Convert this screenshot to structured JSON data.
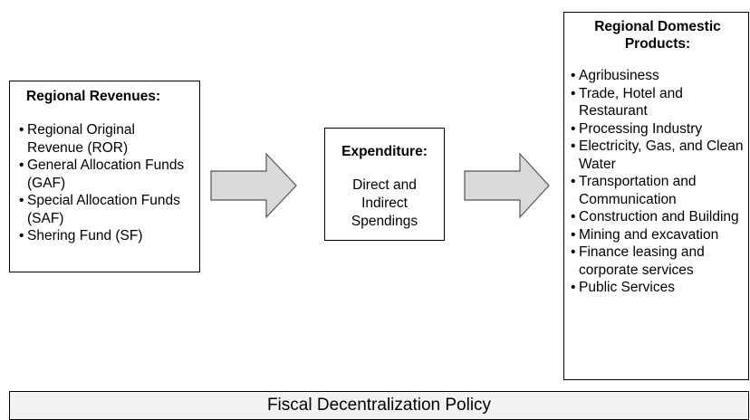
{
  "revenues": {
    "title": "Regional Revenues:",
    "items": [
      "Regional Original Revenue (ROR)",
      "General Allocation Funds (GAF)",
      "Special Allocation Funds (SAF)",
      "Shering Fund (SF)"
    ]
  },
  "expenditure": {
    "title": "Expenditure:",
    "text": "Direct and Indirect Spendings"
  },
  "products": {
    "title": "Regional Domestic Products:",
    "items": [
      "Agribusiness",
      "Trade, Hotel and Restaurant",
      "Processing Industry",
      "Electricity, Gas, and Clean Water",
      "Transportation and Communication",
      "Construction and Building",
      "Mining and excavation",
      "Finance leasing and corporate services",
      "Public Services"
    ]
  },
  "policy": {
    "label": "Fiscal Decentralization Policy"
  }
}
